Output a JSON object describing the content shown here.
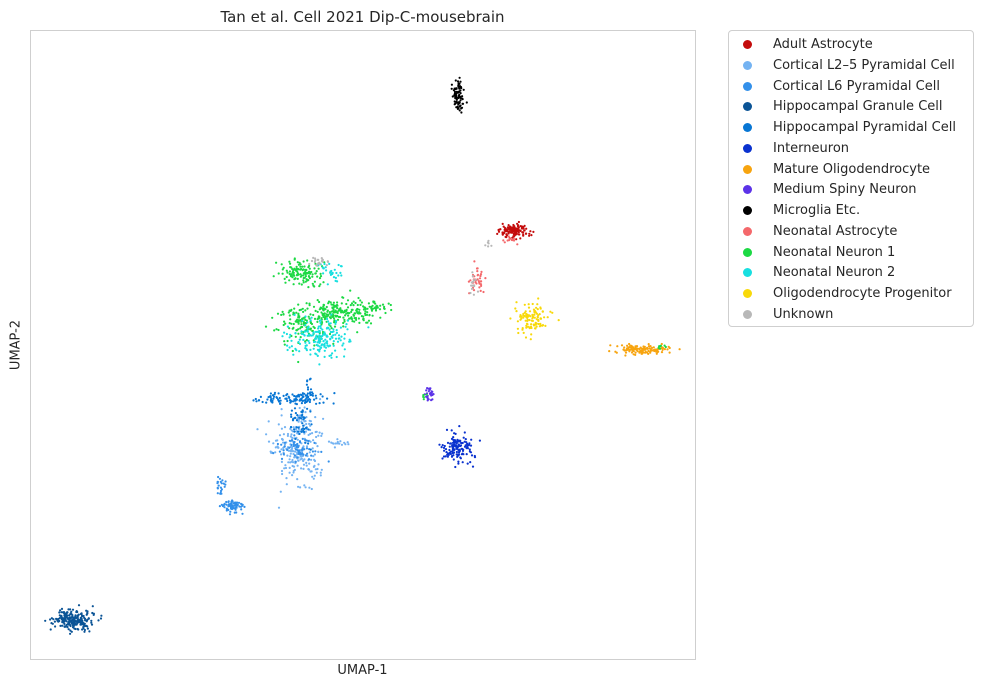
{
  "chart_data": {
    "type": "scatter",
    "title": "Tan et al. Cell 2021 Dip-C-mousebrain",
    "xlabel": "UMAP-1",
    "ylabel": "UMAP-2",
    "xlim": [
      0,
      100
    ],
    "ylim": [
      0,
      100
    ],
    "grid": false,
    "legend_position": "outside-top-right",
    "series": [
      {
        "name": "Adult Astrocyte",
        "color": "#c40c0c",
        "clusters": [
          {
            "cx": 72.8,
            "cy": 68.1,
            "sx": 1.1,
            "sy": 0.6,
            "n": 140
          }
        ]
      },
      {
        "name": "Cortical L2–5 Pyramidal Cell",
        "color": "#74b3f2",
        "clusters": [
          {
            "cx": 40.5,
            "cy": 32.5,
            "sx": 1.6,
            "sy": 2.8,
            "n": 170
          },
          {
            "cx": 38.0,
            "cy": 34.0,
            "sx": 1.5,
            "sy": 0.8,
            "n": 40
          },
          {
            "cx": 46.2,
            "cy": 34.5,
            "sx": 0.9,
            "sy": 0.4,
            "n": 16
          },
          {
            "cx": 41.3,
            "cy": 37.2,
            "sx": 0.9,
            "sy": 1.5,
            "n": 30
          }
        ]
      },
      {
        "name": "Cortical L6 Pyramidal Cell",
        "color": "#3390ea",
        "clusters": [
          {
            "cx": 30.5,
            "cy": 24.3,
            "sx": 0.8,
            "sy": 0.5,
            "n": 75
          },
          {
            "cx": 28.5,
            "cy": 27.7,
            "sx": 0.4,
            "sy": 0.8,
            "n": 22
          },
          {
            "cx": 40.0,
            "cy": 33.5,
            "sx": 1.8,
            "sy": 1.1,
            "n": 60
          }
        ]
      },
      {
        "name": "Hippocampal Granule Cell",
        "color": "#0b5496",
        "clusters": [
          {
            "cx": 6.2,
            "cy": 6.2,
            "sx": 1.4,
            "sy": 0.75,
            "n": 240
          }
        ]
      },
      {
        "name": "Hippocampal Pyramidal Cell",
        "color": "#0876d4",
        "clusters": [
          {
            "cx": 40.0,
            "cy": 41.5,
            "sx": 2.3,
            "sy": 0.5,
            "n": 110
          },
          {
            "cx": 40.5,
            "cy": 38.5,
            "sx": 0.8,
            "sy": 1.8,
            "n": 55
          },
          {
            "cx": 42.0,
            "cy": 43.5,
            "sx": 0.3,
            "sy": 1.0,
            "n": 12
          }
        ]
      },
      {
        "name": "Interneuron",
        "color": "#0a32cf",
        "clusters": [
          {
            "cx": 64.2,
            "cy": 33.7,
            "sx": 1.1,
            "sy": 1.2,
            "n": 140
          }
        ]
      },
      {
        "name": "Mature Oligodendrocyte",
        "color": "#f7a40f",
        "clusters": [
          {
            "cx": 92.0,
            "cy": 49.3,
            "sx": 2.0,
            "sy": 0.4,
            "n": 130
          }
        ]
      },
      {
        "name": "Medium Spiny Neuron",
        "color": "#5c33e8",
        "clusters": [
          {
            "cx": 60.0,
            "cy": 42.5,
            "sx": 0.3,
            "sy": 0.6,
            "n": 30
          }
        ]
      },
      {
        "name": "Microglia Etc.",
        "color": "#000000",
        "clusters": [
          {
            "cx": 64.3,
            "cy": 89.8,
            "sx": 0.4,
            "sy": 1.3,
            "n": 90
          }
        ]
      },
      {
        "name": "Neonatal Astrocyte",
        "color": "#f4686b",
        "clusters": [
          {
            "cx": 67.2,
            "cy": 60.5,
            "sx": 0.6,
            "sy": 1.2,
            "n": 40
          },
          {
            "cx": 72.5,
            "cy": 66.8,
            "sx": 0.6,
            "sy": 0.4,
            "n": 12
          }
        ]
      },
      {
        "name": "Neonatal Neuron 1",
        "color": "#1cd944",
        "clusters": [
          {
            "cx": 46.3,
            "cy": 55.1,
            "sx": 2.8,
            "sy": 1.2,
            "n": 220
          },
          {
            "cx": 41.0,
            "cy": 53.3,
            "sx": 2.0,
            "sy": 1.5,
            "n": 120
          },
          {
            "cx": 40.7,
            "cy": 61.5,
            "sx": 1.4,
            "sy": 0.9,
            "n": 130
          },
          {
            "cx": 52.0,
            "cy": 56.0,
            "sx": 0.9,
            "sy": 0.5,
            "n": 28
          },
          {
            "cx": 95.0,
            "cy": 49.7,
            "sx": 0.3,
            "sy": 0.2,
            "n": 8
          },
          {
            "cx": 59.2,
            "cy": 41.8,
            "sx": 0.2,
            "sy": 0.2,
            "n": 6
          }
        ]
      },
      {
        "name": "Neonatal Neuron 2",
        "color": "#18dfe0",
        "clusters": [
          {
            "cx": 43.5,
            "cy": 51.2,
            "sx": 2.2,
            "sy": 1.6,
            "n": 190
          },
          {
            "cx": 45.5,
            "cy": 61.7,
            "sx": 1.0,
            "sy": 0.8,
            "n": 30
          }
        ]
      },
      {
        "name": "Oligodendrocyte Progenitor",
        "color": "#f8d90a",
        "clusters": [
          {
            "cx": 75.5,
            "cy": 54.0,
            "sx": 1.3,
            "sy": 1.2,
            "n": 110
          }
        ]
      },
      {
        "name": "Unknown",
        "color": "#b8b8b8",
        "clusters": [
          {
            "cx": 43.5,
            "cy": 63.3,
            "sx": 1.0,
            "sy": 0.4,
            "n": 22
          },
          {
            "cx": 68.9,
            "cy": 66.0,
            "sx": 0.2,
            "sy": 0.2,
            "n": 6
          },
          {
            "cx": 66.5,
            "cy": 59.5,
            "sx": 0.5,
            "sy": 0.8,
            "n": 14
          }
        ]
      }
    ]
  }
}
